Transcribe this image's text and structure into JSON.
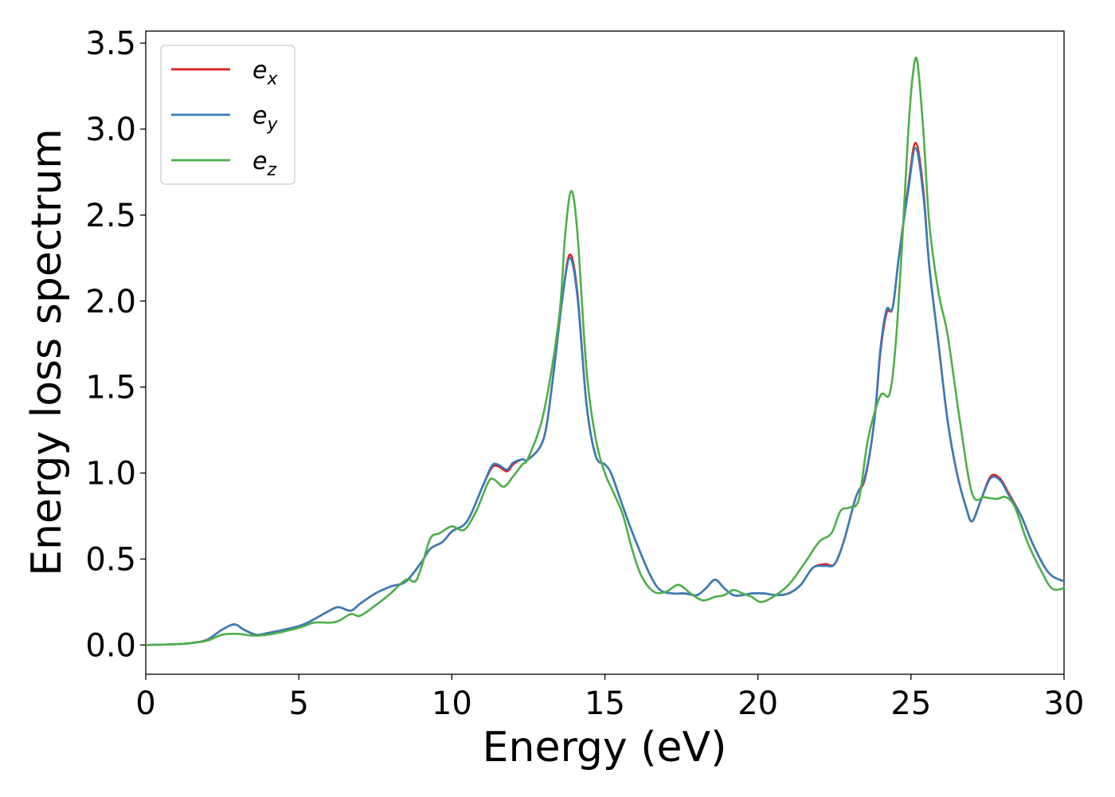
{
  "chart_data": {
    "type": "line",
    "title": "",
    "xlabel": "Energy (eV)",
    "ylabel": "Energy loss spectrum",
    "xlim": [
      0,
      30
    ],
    "ylim": [
      -0.17,
      3.57
    ],
    "xticks": [
      0,
      5,
      10,
      15,
      20,
      25,
      30
    ],
    "yticks": [
      0.0,
      0.5,
      1.0,
      1.5,
      2.0,
      2.5,
      3.0,
      3.5
    ],
    "grid": false,
    "legend": "top-left",
    "series": [
      {
        "name": "e_x",
        "label_main": "e",
        "label_sub": "x",
        "color": "#e41a1c",
        "x": [
          0,
          1,
          1.5,
          2,
          2.5,
          2.9,
          3.2,
          3.6,
          4,
          5,
          5.5,
          6,
          6.3,
          6.7,
          7,
          7.5,
          8,
          8.5,
          9,
          9.3,
          9.7,
          10,
          10.5,
          11,
          11.3,
          11.5,
          11.8,
          12,
          12.3,
          12.5,
          13,
          13.3,
          13.6,
          13.85,
          14.1,
          14.4,
          14.7,
          15,
          15.2,
          15.5,
          15.8,
          16.2,
          16.5,
          16.8,
          17.2,
          17.6,
          18,
          18.3,
          18.6,
          18.9,
          19.2,
          19.5,
          19.8,
          20.2,
          20.6,
          21,
          21.4,
          21.8,
          22.2,
          22.5,
          22.8,
          23.2,
          23.5,
          23.8,
          24,
          24.2,
          24.4,
          24.6,
          24.9,
          25.15,
          25.4,
          25.6,
          25.9,
          26.2,
          26.5,
          26.8,
          27,
          27.3,
          27.6,
          27.9,
          28.2,
          28.6,
          29,
          29.5,
          30
        ],
        "y": [
          0.0,
          0.005,
          0.012,
          0.03,
          0.09,
          0.12,
          0.09,
          0.06,
          0.07,
          0.11,
          0.15,
          0.2,
          0.22,
          0.2,
          0.24,
          0.3,
          0.34,
          0.37,
          0.48,
          0.56,
          0.6,
          0.66,
          0.72,
          0.92,
          1.03,
          1.04,
          1.01,
          1.05,
          1.08,
          1.08,
          1.2,
          1.55,
          2.0,
          2.27,
          2.05,
          1.4,
          1.1,
          1.05,
          1.0,
          0.85,
          0.7,
          0.52,
          0.4,
          0.32,
          0.3,
          0.3,
          0.29,
          0.33,
          0.38,
          0.33,
          0.29,
          0.29,
          0.3,
          0.3,
          0.29,
          0.3,
          0.35,
          0.45,
          0.47,
          0.47,
          0.6,
          0.86,
          0.97,
          1.3,
          1.7,
          1.93,
          1.96,
          2.25,
          2.65,
          2.92,
          2.65,
          2.2,
          1.75,
          1.3,
          1.0,
          0.8,
          0.72,
          0.85,
          0.98,
          0.97,
          0.88,
          0.75,
          0.58,
          0.42,
          0.37
        ]
      },
      {
        "name": "e_y",
        "label_main": "e",
        "label_sub": "y",
        "color": "#377eb8",
        "x": [
          0,
          1,
          1.5,
          2,
          2.5,
          2.9,
          3.2,
          3.6,
          4,
          5,
          5.5,
          6,
          6.3,
          6.7,
          7,
          7.5,
          8,
          8.5,
          9,
          9.3,
          9.7,
          10,
          10.5,
          11,
          11.3,
          11.5,
          11.8,
          12,
          12.3,
          12.5,
          13,
          13.3,
          13.6,
          13.85,
          14.1,
          14.4,
          14.7,
          15,
          15.2,
          15.5,
          15.8,
          16.2,
          16.5,
          16.8,
          17.2,
          17.6,
          18,
          18.3,
          18.6,
          18.9,
          19.2,
          19.5,
          19.8,
          20.2,
          20.6,
          21,
          21.4,
          21.8,
          22.2,
          22.5,
          22.8,
          23.2,
          23.5,
          23.8,
          24,
          24.2,
          24.4,
          24.6,
          24.9,
          25.15,
          25.4,
          25.6,
          25.9,
          26.2,
          26.5,
          26.8,
          27,
          27.3,
          27.6,
          27.9,
          28.2,
          28.6,
          29,
          29.5,
          30
        ],
        "y": [
          0.0,
          0.005,
          0.012,
          0.03,
          0.09,
          0.12,
          0.09,
          0.06,
          0.07,
          0.11,
          0.15,
          0.2,
          0.22,
          0.2,
          0.24,
          0.3,
          0.34,
          0.37,
          0.48,
          0.56,
          0.6,
          0.66,
          0.72,
          0.92,
          1.04,
          1.05,
          1.02,
          1.06,
          1.08,
          1.08,
          1.2,
          1.55,
          2.0,
          2.25,
          2.03,
          1.4,
          1.1,
          1.05,
          1.0,
          0.85,
          0.7,
          0.52,
          0.4,
          0.32,
          0.3,
          0.3,
          0.29,
          0.33,
          0.38,
          0.33,
          0.29,
          0.29,
          0.3,
          0.3,
          0.29,
          0.3,
          0.35,
          0.45,
          0.46,
          0.47,
          0.6,
          0.86,
          0.98,
          1.3,
          1.72,
          1.95,
          1.96,
          2.25,
          2.63,
          2.89,
          2.62,
          2.2,
          1.75,
          1.3,
          1.0,
          0.8,
          0.72,
          0.85,
          0.97,
          0.96,
          0.87,
          0.75,
          0.58,
          0.42,
          0.37
        ]
      },
      {
        "name": "e_z",
        "label_main": "e",
        "label_sub": "z",
        "color": "#4daf4a",
        "x": [
          0,
          1,
          1.5,
          2,
          2.5,
          3,
          3.5,
          4,
          5,
          5.5,
          6,
          6.3,
          6.7,
          7,
          7.5,
          8,
          8.5,
          8.8,
          9,
          9.3,
          9.6,
          10,
          10.4,
          10.8,
          11.2,
          11.4,
          11.7,
          12,
          12.3,
          12.5,
          13,
          13.5,
          13.7,
          13.9,
          14.1,
          14.4,
          14.7,
          15,
          15.3,
          15.6,
          15.9,
          16.2,
          16.6,
          17,
          17.4,
          17.8,
          18.2,
          18.6,
          18.9,
          19.2,
          19.5,
          19.8,
          20.1,
          20.5,
          21,
          21.5,
          22,
          22.4,
          22.7,
          23,
          23.3,
          23.6,
          24,
          24.3,
          24.5,
          24.7,
          24.9,
          25.05,
          25.2,
          25.4,
          25.6,
          25.9,
          26.2,
          26.6,
          27,
          27.4,
          27.8,
          28.1,
          28.4,
          28.8,
          29.2,
          29.6,
          30
        ],
        "y": [
          0.0,
          0.005,
          0.012,
          0.025,
          0.06,
          0.065,
          0.055,
          0.06,
          0.1,
          0.13,
          0.13,
          0.14,
          0.18,
          0.17,
          0.23,
          0.3,
          0.38,
          0.37,
          0.45,
          0.62,
          0.65,
          0.69,
          0.67,
          0.78,
          0.95,
          0.96,
          0.92,
          0.98,
          1.05,
          1.09,
          1.35,
          1.9,
          2.38,
          2.64,
          2.4,
          1.6,
          1.2,
          1.0,
          0.88,
          0.75,
          0.55,
          0.4,
          0.31,
          0.31,
          0.35,
          0.3,
          0.26,
          0.28,
          0.29,
          0.32,
          0.3,
          0.28,
          0.25,
          0.28,
          0.35,
          0.47,
          0.6,
          0.65,
          0.78,
          0.8,
          0.85,
          1.2,
          1.45,
          1.46,
          1.75,
          2.3,
          2.95,
          3.3,
          3.4,
          3.0,
          2.45,
          2.05,
          1.8,
          1.3,
          0.88,
          0.86,
          0.85,
          0.86,
          0.8,
          0.6,
          0.45,
          0.33,
          0.33
        ]
      }
    ]
  }
}
